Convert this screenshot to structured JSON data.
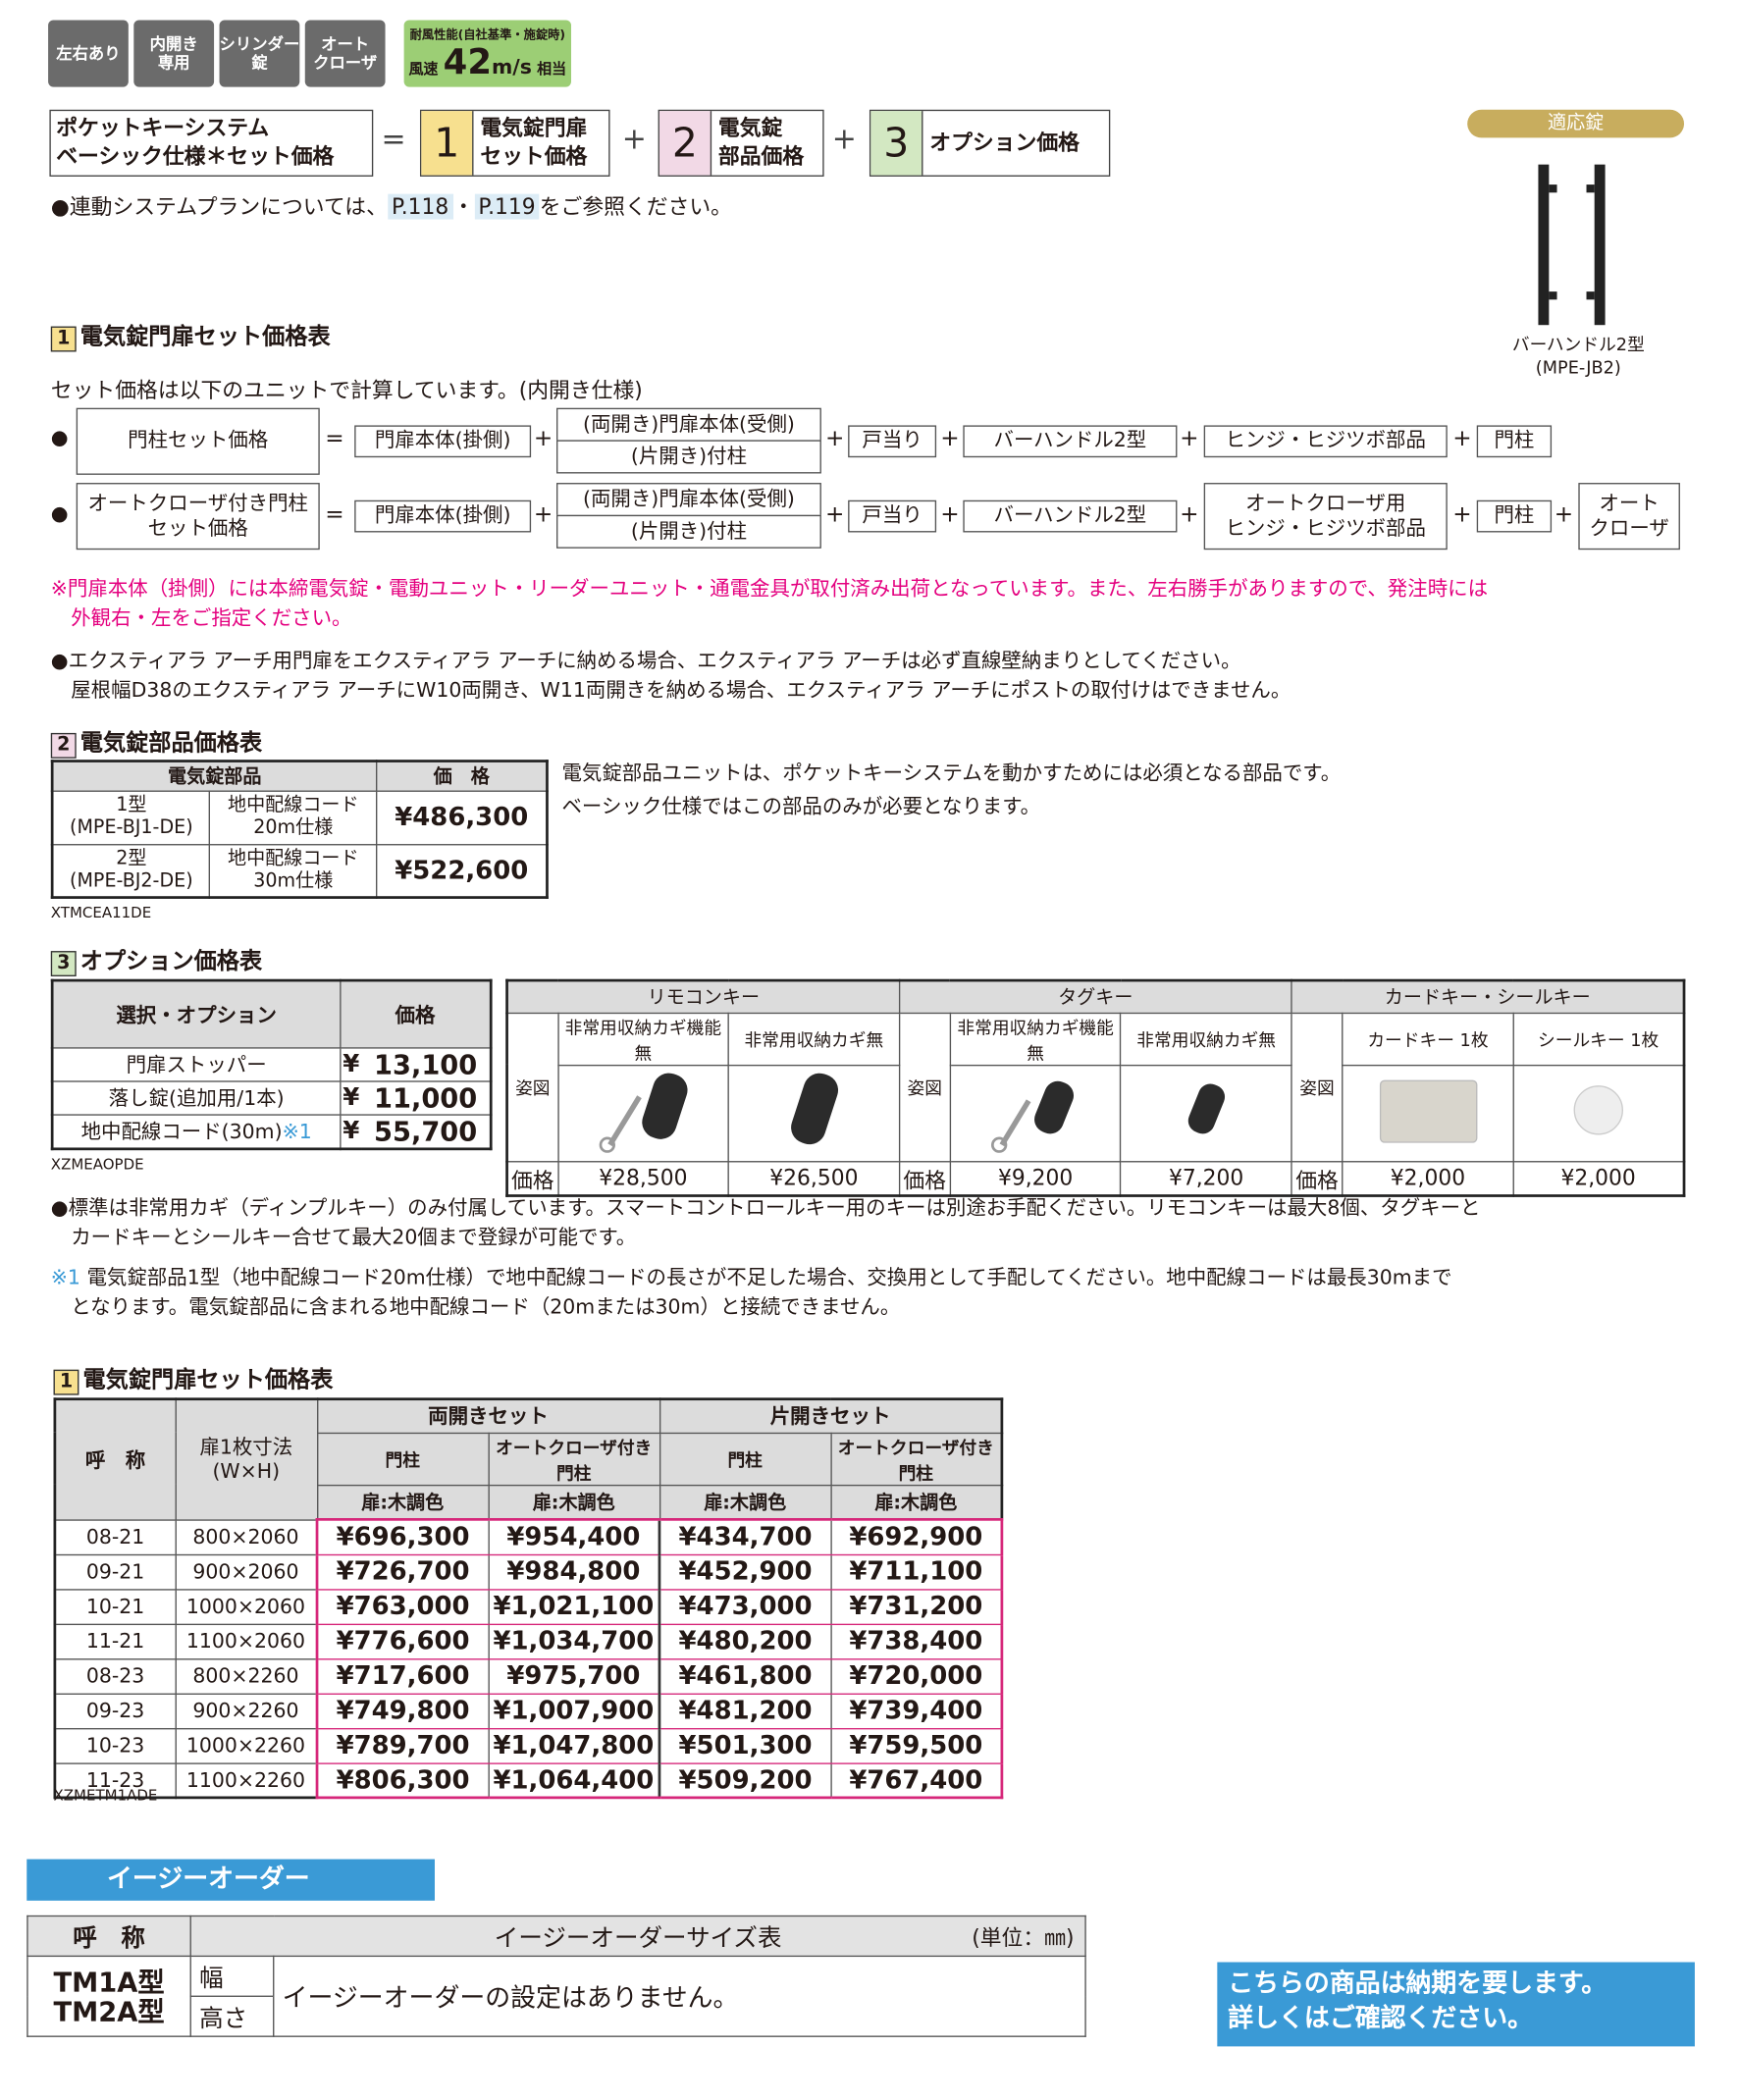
{
  "badges": [
    "左右あり",
    "内開き\n専用",
    "シリンダー\n錠",
    "オート\nクローザ"
  ],
  "wind": {
    "label": "耐風性能(自社基準・施錠時)",
    "prefix": "風速",
    "value": "42",
    "unit": "m/s",
    "suffix": "相当",
    "color": "#9cce75"
  },
  "formula": {
    "total": "ポケットキーシステム\nベーシック仕様＊セット価格",
    "eq": "=",
    "plus": "+",
    "items": [
      {
        "num": "1",
        "label": "電気錠門扉\nセット価格",
        "color": "#f7e08f"
      },
      {
        "num": "2",
        "label": "電気錠\n部品価格",
        "color": "#f2d9e6"
      },
      {
        "num": "3",
        "label": "オプション価格",
        "color": "#d3e8c2"
      }
    ]
  },
  "note_link": {
    "pre": "●連動システムプランについては、",
    "p1": "P.118",
    "sep": "・",
    "p2": "P.119",
    "post": "をご参照ください。"
  },
  "lock": {
    "pill": "適応錠",
    "caption": "バーハンドル2型\n(MPE-JB2)",
    "pill_color": "#c8ad5e"
  },
  "sec1": {
    "num": "1",
    "title": "電気錠門扉セット価格表",
    "intro": "セット価格は以下のユニットで計算しています。(内開き仕様)",
    "row1": [
      "門柱セット価格",
      "門扉本体(掛側)",
      "(両開き)門扉本体(受側)",
      "(片開き)付柱",
      "戸当り",
      "バーハンドル2型",
      "ヒンジ・ヒジツボ部品",
      "門柱"
    ],
    "row2": [
      "オートクローザ付き門柱\nセット価格",
      "門扉本体(掛側)",
      "(両開き)門扉本体(受側)",
      "(片開き)付柱",
      "戸当り",
      "バーハンドル2型",
      "オートクローザ用\nヒンジ・ヒジツボ部品",
      "門柱",
      "オート\nクローザ"
    ],
    "pink_note": "※門扉本体（掛側）には本締電気錠・電動ユニット・リーダーユニット・通電金具が取付済み出荷となっています。また、左右勝手がありますので、発注時には\n　外観右・左をご指定ください。",
    "note": "●エクスティアラ アーチ用門扉をエクスティアラ アーチに納める場合、エクスティアラ アーチは必ず直線壁納まりとしてください。\n　屋根幅D38のエクスティアラ アーチにW10両開き、W11両開きを納める場合、エクスティアラ アーチにポストの取付けはできません。"
  },
  "sec2": {
    "num": "2",
    "title": "電気錠部品価格表",
    "headers": [
      "電気錠部品",
      "価　格"
    ],
    "rows": [
      {
        "type": "1型\n(MPE-BJ1-DE)",
        "spec": "地中配線コード\n20m仕様",
        "price": "¥486,300"
      },
      {
        "type": "2型\n(MPE-BJ2-DE)",
        "spec": "地中配線コード\n30m仕様",
        "price": "¥522,600"
      }
    ],
    "code": "XTMCEA11DE",
    "desc": "電気錠部品ユニットは、ポケットキーシステムを動かすためには必須となる部品です。\nベーシック仕様ではこの部品のみが必要となります。"
  },
  "sec3": {
    "num": "3",
    "title": "オプション価格表",
    "headers": [
      "選択・オプション",
      "価格"
    ],
    "rows": [
      {
        "name": "門扉ストッパー",
        "yen": "¥",
        "price": "13,100"
      },
      {
        "name": "落し錠(追加用/1本)",
        "yen": "¥",
        "price": "11,000"
      },
      {
        "name": "地中配線コード(30m)",
        "mark": "※1",
        "yen": "¥",
        "price": "55,700"
      }
    ],
    "code": "XZMEAOPDE",
    "keys": {
      "fig": "姿図",
      "price": "価格",
      "groups": [
        {
          "name": "リモコンキー",
          "items": [
            {
              "label": "非常用収納カギ機能無",
              "price": "¥28,500"
            },
            {
              "label": "非常用収納カギ無",
              "price": "¥26,500"
            }
          ]
        },
        {
          "name": "タグキー",
          "items": [
            {
              "label": "非常用収納カギ機能無",
              "price": "¥9,200"
            },
            {
              "label": "非常用収納カギ無",
              "price": "¥7,200"
            }
          ]
        },
        {
          "name": "カードキー・シールキー",
          "items": [
            {
              "label": "カードキー 1枚",
              "price": "¥2,000"
            },
            {
              "label": "シールキー 1枚",
              "price": "¥2,000"
            }
          ]
        }
      ]
    },
    "note1": "●標準は非常用カギ（ディンプルキー）のみ付属しています。スマートコントロールキー用のキーは別途お手配ください。リモコンキーは最大8個、タグキーと\n　カードキーとシールキー合せて最大20個まで登録が可能です。",
    "note2_mark": "※1",
    "note2": "電気錠部品1型（地中配線コード20m仕様）で地中配線コードの長さが不足した場合、交換用として手配してください。地中配線コードは最長30mまで\n　となります。電気錠部品に含まれる地中配線コード（20mまたは30m）と接続できません。"
  },
  "price_table": {
    "num": "1",
    "title": "電気錠門扉セット価格表",
    "h_name": "呼　称",
    "h_size": "扉1枚寸法\n(W×H)",
    "g1": "両開きセット",
    "g2": "片開きセット",
    "c1": "門柱",
    "c2": "オートクローザ付き門柱",
    "color": "扉:木調色",
    "code": "XZMETM1ADE",
    "highlight": "#d6277a",
    "rows": [
      [
        "08-21",
        "800×2060",
        "¥696,300",
        "¥954,400",
        "¥434,700",
        "¥692,900"
      ],
      [
        "09-21",
        "900×2060",
        "¥726,700",
        "¥984,800",
        "¥452,900",
        "¥711,100"
      ],
      [
        "10-21",
        "1000×2060",
        "¥763,000",
        "¥1,021,100",
        "¥473,000",
        "¥731,200"
      ],
      [
        "11-21",
        "1100×2060",
        "¥776,600",
        "¥1,034,700",
        "¥480,200",
        "¥738,400"
      ],
      [
        "08-23",
        "800×2260",
        "¥717,600",
        "¥975,700",
        "¥461,800",
        "¥720,000"
      ],
      [
        "09-23",
        "900×2260",
        "¥749,800",
        "¥1,007,900",
        "¥481,200",
        "¥739,400"
      ],
      [
        "10-23",
        "1000×2260",
        "¥789,700",
        "¥1,047,800",
        "¥501,300",
        "¥759,500"
      ],
      [
        "11-23",
        "1100×2260",
        "¥806,300",
        "¥1,064,400",
        "¥509,200",
        "¥767,400"
      ]
    ]
  },
  "easy": {
    "banner": "イージーオーダー",
    "h_name": "呼　称",
    "h_table": "イージーオーダーサイズ表",
    "unit": "(単位：㎜)",
    "models": "TM1A型\nTM2A型",
    "w": "幅",
    "hgt": "高さ",
    "msg": "イージーオーダーの設定はありません。",
    "banner_color": "#3a9ad6"
  },
  "notice": "こちらの商品は納期を要します。\n詳しくはご確認ください。"
}
